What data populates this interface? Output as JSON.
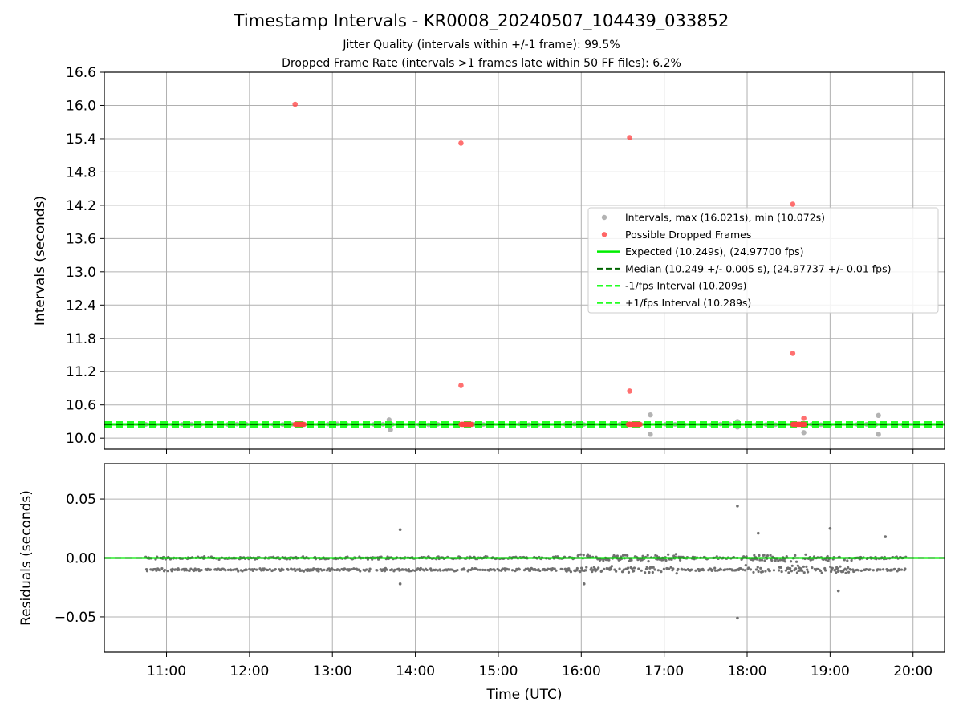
{
  "title": "Timestamp Intervals - KR0008_20240507_104439_033852",
  "subtitle_1": "Jitter Quality (intervals within +/-1 frame): 99.5%",
  "subtitle_2": "Dropped Frame Rate (intervals >1 frames late within 50 FF files): 6.2%",
  "colors": {
    "intervals": "#a0a0a0",
    "dropped": "#ff4040",
    "expected": "#00ee00",
    "median": "#006400",
    "bounds": "#22ff22",
    "residuals": "#707070",
    "grid": "#b0b0b0"
  },
  "chart_data": [
    {
      "type": "scatter",
      "panel": "top",
      "ylabel": "Intervals (seconds)",
      "xlabel": "",
      "ylim": [
        9.8,
        16.6
      ],
      "xlim_hours": [
        10.25,
        20.38
      ],
      "yticks": [
        "10.0",
        "10.6",
        "11.2",
        "11.8",
        "12.4",
        "13.0",
        "13.6",
        "14.2",
        "14.8",
        "15.4",
        "16.0",
        "16.6"
      ],
      "grid": true,
      "legend_position": "right",
      "legend": [
        "Intervals, max (16.021s), min (10.072s)",
        "Possible Dropped Frames",
        "Expected (10.249s), (24.97700 fps)",
        "Median (10.249 +/- 0.005 s), (24.97737 +/- 0.01 fps)",
        "-1/fps Interval (10.209s)",
        "+1/fps Interval (10.289s)"
      ],
      "lines": {
        "expected": 10.249,
        "median": 10.249,
        "minus_1fps": 10.209,
        "plus_1fps": 10.289
      },
      "interval_band": {
        "x_start": "10:45",
        "x_end": "19:55",
        "y": 10.249
      },
      "interval_outliers": [
        {
          "x": "13:41",
          "y": 10.33
        },
        {
          "x": "13:42",
          "y": 10.15
        },
        {
          "x": "16:50",
          "y": 10.42
        },
        {
          "x": "16:50",
          "y": 10.07
        },
        {
          "x": "17:53",
          "y": 10.3
        },
        {
          "x": "17:53",
          "y": 10.2
        },
        {
          "x": "18:41",
          "y": 10.1
        },
        {
          "x": "19:35",
          "y": 10.41
        },
        {
          "x": "19:35",
          "y": 10.07
        }
      ],
      "dropped_points": [
        {
          "x": "12:33",
          "y": 16.02
        },
        {
          "x": "14:33",
          "y": 15.32
        },
        {
          "x": "14:33",
          "y": 10.95
        },
        {
          "x": "16:35",
          "y": 15.42
        },
        {
          "x": "16:35",
          "y": 10.85
        },
        {
          "x": "18:33",
          "y": 14.22
        },
        {
          "x": "18:33",
          "y": 11.53
        },
        {
          "x": "18:41",
          "y": 10.36
        }
      ],
      "dropped_clusters": [
        {
          "x_start": "12:33",
          "x_end": "12:40",
          "y": 10.249
        },
        {
          "x_start": "14:33",
          "x_end": "14:41",
          "y": 10.249
        },
        {
          "x_start": "16:34",
          "x_end": "16:43",
          "y": 10.249
        },
        {
          "x_start": "18:33",
          "x_end": "18:42",
          "y": 10.249
        }
      ]
    },
    {
      "type": "scatter",
      "panel": "bottom",
      "ylabel": "Residuals (seconds)",
      "xlabel": "Time (UTC)",
      "ylim": [
        -0.08,
        0.08
      ],
      "yticks": [
        "−0.05",
        "0.00",
        "0.05"
      ],
      "xticks": [
        "11:00",
        "12:00",
        "13:00",
        "14:00",
        "15:00",
        "16:00",
        "17:00",
        "18:00",
        "19:00",
        "20:00"
      ],
      "grid": true,
      "residual_bands": [
        0.0,
        -0.01
      ],
      "residual_range_hours": [
        10.75,
        19.92
      ],
      "residual_outliers": [
        {
          "x": "13:49",
          "y": 0.024
        },
        {
          "x": "13:49",
          "y": -0.022
        },
        {
          "x": "16:02",
          "y": -0.022
        },
        {
          "x": "17:53",
          "y": 0.044
        },
        {
          "x": "17:53",
          "y": -0.051
        },
        {
          "x": "18:08",
          "y": 0.021
        },
        {
          "x": "19:00",
          "y": 0.025
        },
        {
          "x": "19:06",
          "y": -0.028
        },
        {
          "x": "19:40",
          "y": 0.018
        }
      ]
    }
  ]
}
